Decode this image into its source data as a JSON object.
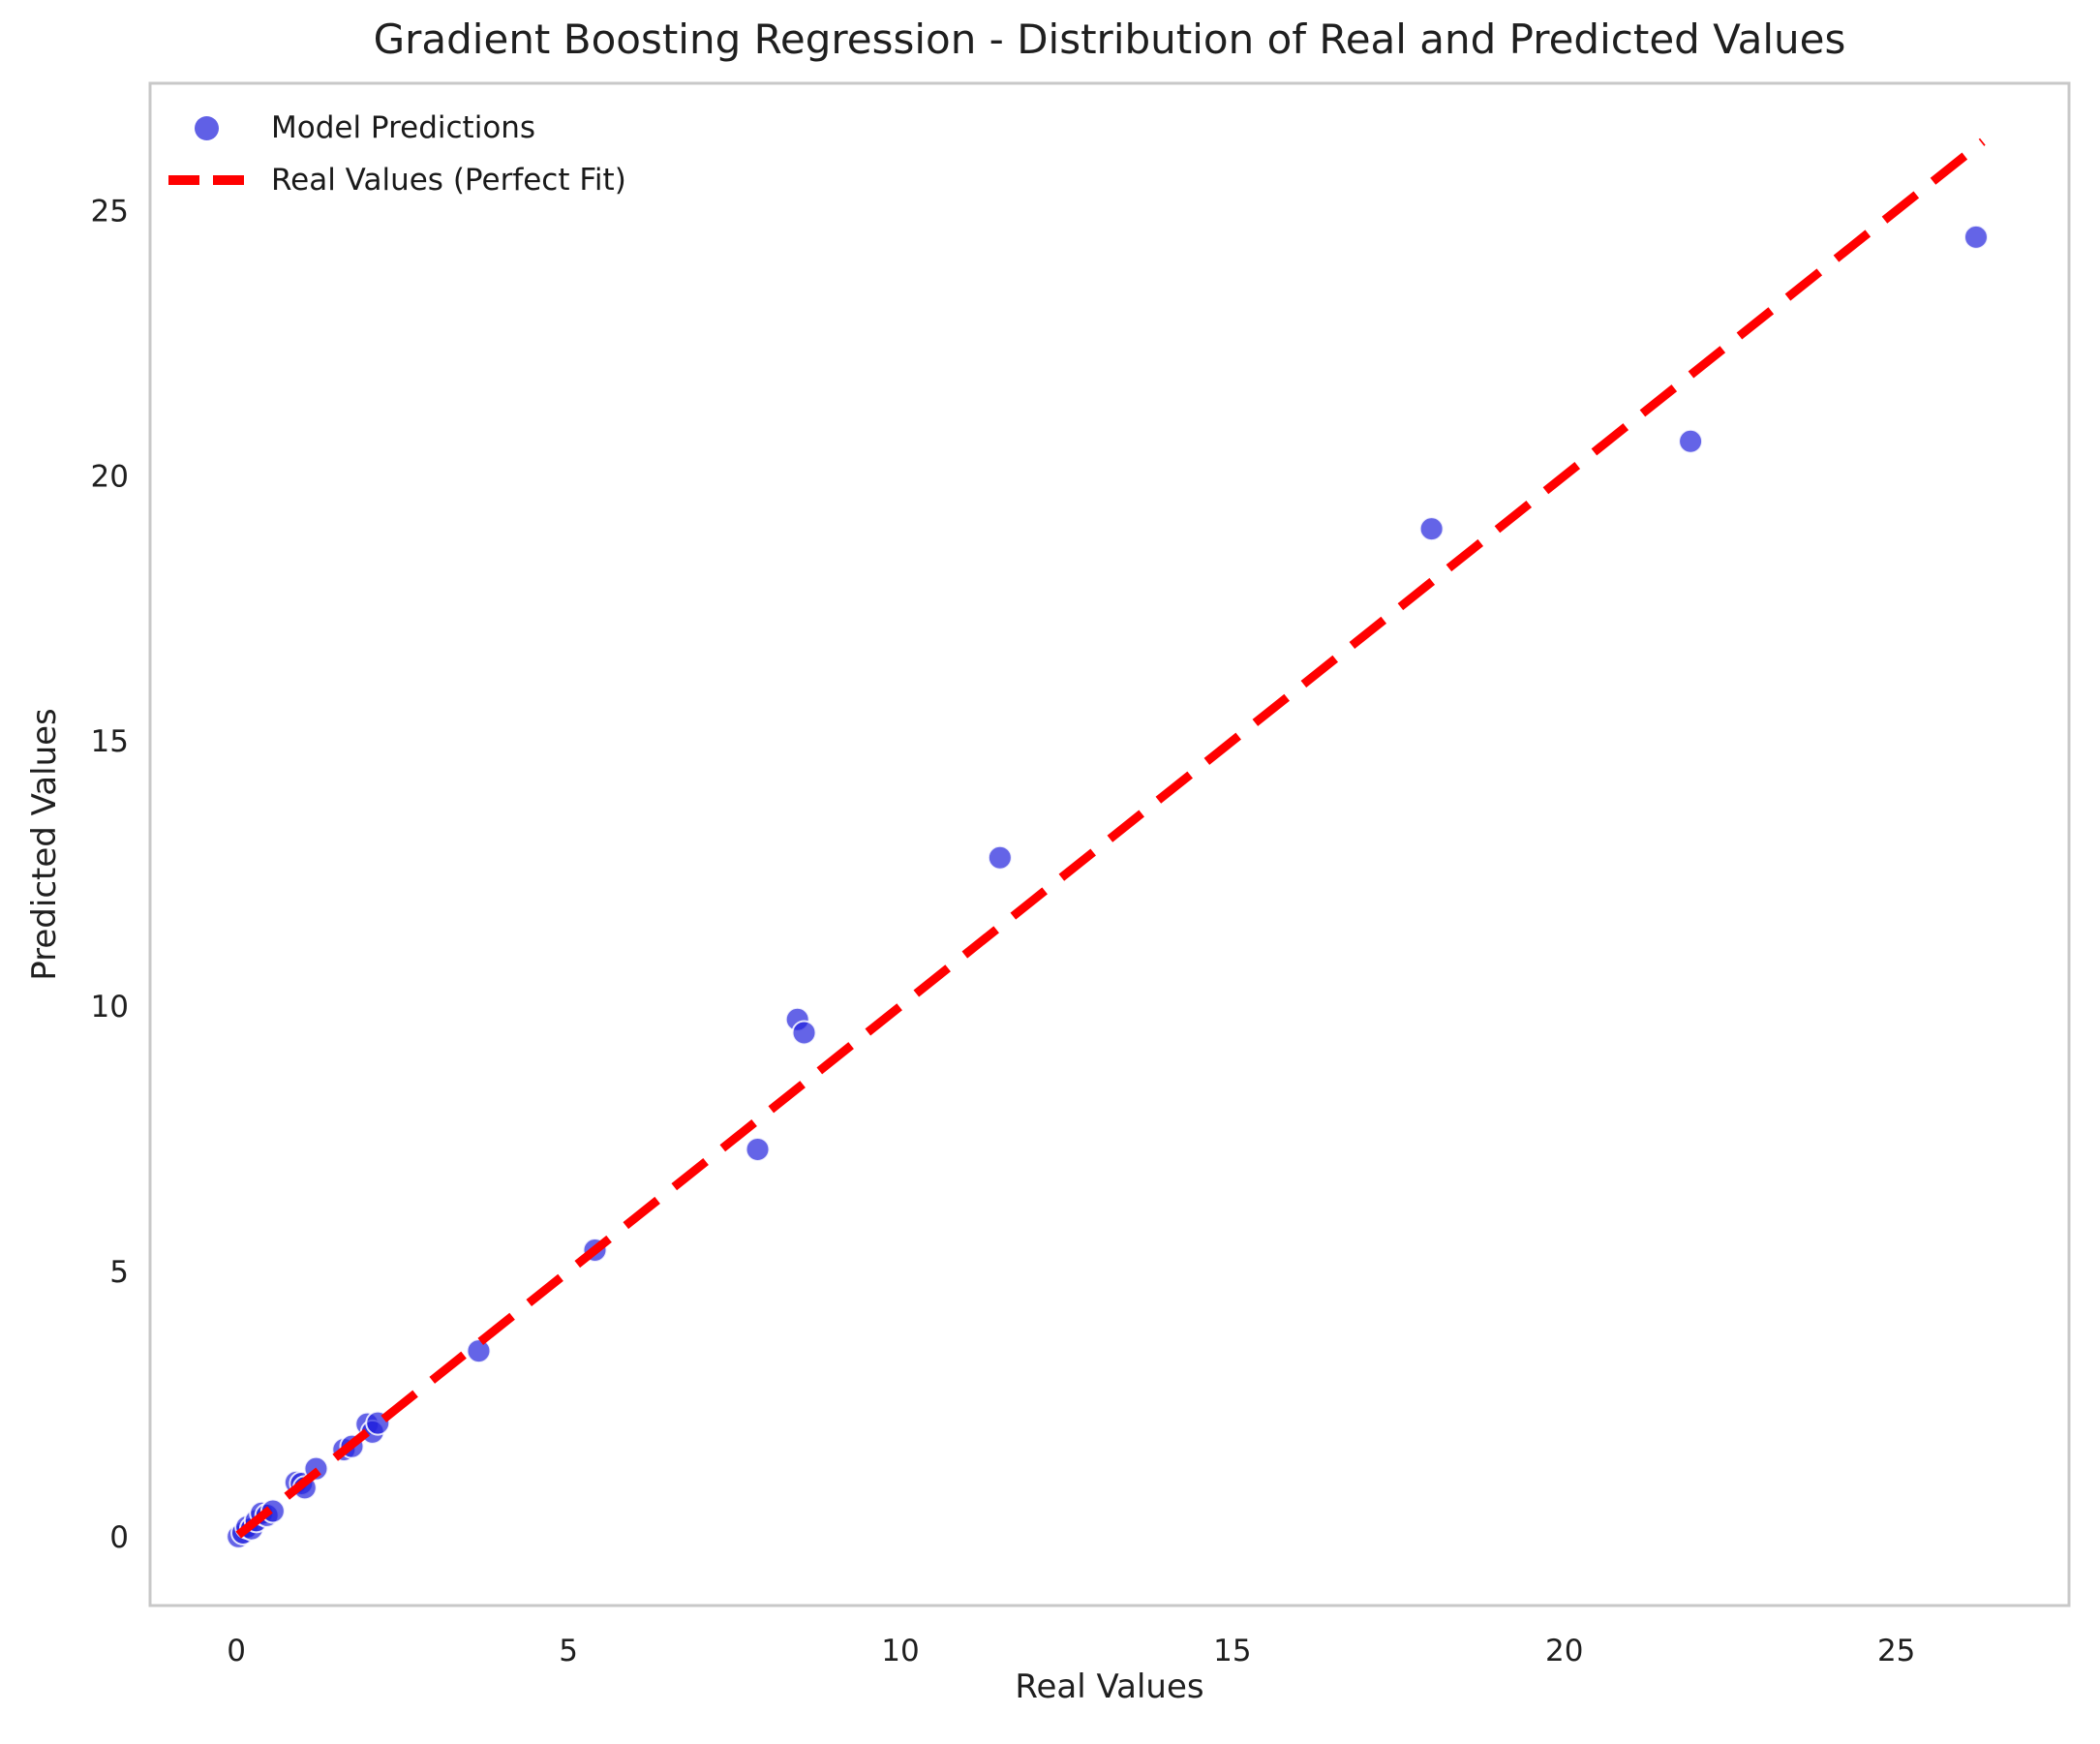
{
  "figure": {
    "title": "Gradient Boosting Regression - Distribution of Real and Predicted Values",
    "x_axis_label": "Real Values",
    "y_axis_label": "Predicted Values",
    "legend": {
      "model_predictions": "Model Predictions",
      "real_values": "Real Values (Perfect Fit)"
    }
  },
  "colors": {
    "background": "#ffffff",
    "spine": "#c8c8c8",
    "text": "#1f1f1f",
    "scatter_fill": "#2222dd",
    "scatter_edge": "#ffffff",
    "perfect_fit_line": "#ff0000"
  },
  "chart_data": {
    "type": "scatter",
    "title": "Gradient Boosting Regression - Distribution of Real and Predicted Values",
    "xlabel": "Real Values",
    "ylabel": "Predicted Values",
    "xlim": [
      -1.3,
      27.6
    ],
    "ylim": [
      -1.3,
      27.4
    ],
    "xticks": [
      0,
      5,
      10,
      15,
      20,
      25
    ],
    "yticks": [
      0,
      5,
      10,
      15,
      20,
      25
    ],
    "grid": false,
    "legend_position": "upper left",
    "series": [
      {
        "name": "Model Predictions",
        "type": "scatter",
        "marker": "circle",
        "color": "#2222dd",
        "opacity": 0.7,
        "points": [
          [
            0.03,
            0.0
          ],
          [
            0.1,
            0.07
          ],
          [
            0.16,
            0.18
          ],
          [
            0.23,
            0.15
          ],
          [
            0.3,
            0.3
          ],
          [
            0.38,
            0.44
          ],
          [
            0.46,
            0.4
          ],
          [
            0.55,
            0.48
          ],
          [
            0.9,
            1.02
          ],
          [
            0.98,
            1.0
          ],
          [
            1.03,
            0.92
          ],
          [
            1.2,
            1.28
          ],
          [
            1.62,
            1.64
          ],
          [
            1.74,
            1.7
          ],
          [
            1.97,
            2.12
          ],
          [
            2.05,
            1.97
          ],
          [
            2.13,
            2.14
          ],
          [
            3.65,
            3.5
          ],
          [
            5.4,
            5.4
          ],
          [
            7.85,
            7.3
          ],
          [
            8.45,
            9.75
          ],
          [
            8.55,
            9.5
          ],
          [
            11.5,
            12.8
          ],
          [
            18.0,
            19.0
          ],
          [
            21.9,
            20.65
          ],
          [
            26.2,
            24.5
          ]
        ]
      },
      {
        "name": "Real Values (Perfect Fit)",
        "type": "line",
        "style": "dashed",
        "color": "#ff0000",
        "points": [
          [
            0.03,
            0.03
          ],
          [
            26.3,
            26.3
          ]
        ]
      }
    ]
  }
}
